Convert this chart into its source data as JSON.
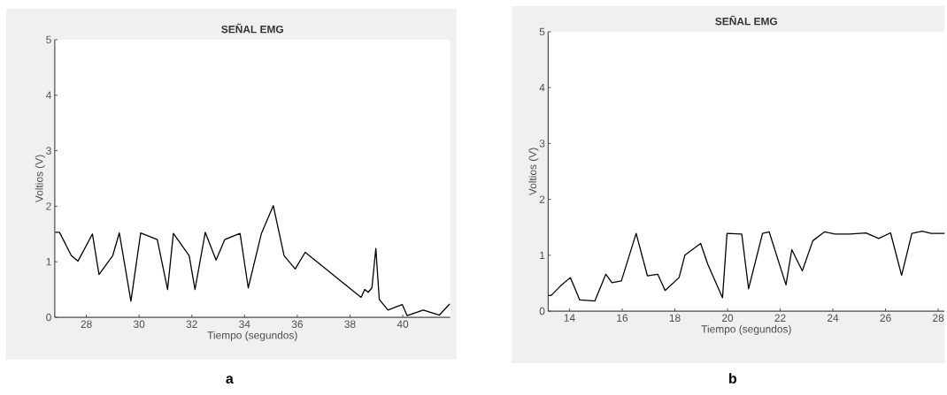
{
  "chart_data": [
    {
      "type": "line",
      "title": "SEÑAL EMG",
      "xlabel": "Tiempo (segundos)",
      "ylabel": "Voltios (V)",
      "color": "#000000",
      "x": [
        26.82,
        26.98,
        27.43,
        27.68,
        28.23,
        28.48,
        29.0,
        29.25,
        29.69,
        30.06,
        30.69,
        31.08,
        31.3,
        31.9,
        32.12,
        32.51,
        32.92,
        33.25,
        33.83,
        34.14,
        34.64,
        35.09,
        35.5,
        35.92,
        36.3,
        38.42,
        38.56,
        38.69,
        38.83,
        38.98,
        39.11,
        39.44,
        39.98,
        40.17,
        40.78,
        41.39,
        41.78
      ],
      "values": [
        1.53,
        1.53,
        1.11,
        1.01,
        1.5,
        0.77,
        1.11,
        1.52,
        0.29,
        1.52,
        1.4,
        0.5,
        1.51,
        1.11,
        0.5,
        1.53,
        1.03,
        1.4,
        1.51,
        0.53,
        1.51,
        2.01,
        1.11,
        0.87,
        1.17,
        0.36,
        0.5,
        0.45,
        0.53,
        1.24,
        0.32,
        0.13,
        0.23,
        0.03,
        0.13,
        0.04,
        0.24
      ],
      "xlim": [
        26.8,
        41.8
      ],
      "ylim": [
        0,
        5
      ],
      "xticks": [
        28,
        30,
        32,
        34,
        36,
        38,
        40
      ],
      "yticks": [
        0,
        1,
        2,
        3,
        4,
        5
      ],
      "annotations": [
        "a"
      ]
    },
    {
      "type": "line",
      "title": "SEÑAL EMG",
      "xlabel": "Tiempo (segundos)",
      "ylabel": "Voltios (V)",
      "color": "#000000",
      "x": [
        13.19,
        13.3,
        13.66,
        14.03,
        14.39,
        14.96,
        15.38,
        15.61,
        15.97,
        16.53,
        16.96,
        17.35,
        17.63,
        18.16,
        18.38,
        18.98,
        19.25,
        19.81,
        19.98,
        20.54,
        20.8,
        21.33,
        21.58,
        22.22,
        22.44,
        22.84,
        23.24,
        23.69,
        24.08,
        24.64,
        25.26,
        25.74,
        26.19,
        26.61,
        27.0,
        27.39,
        27.73,
        28.24
      ],
      "values": [
        0.28,
        0.28,
        0.45,
        0.6,
        0.2,
        0.18,
        0.66,
        0.51,
        0.54,
        1.39,
        0.63,
        0.66,
        0.37,
        0.6,
        1.0,
        1.21,
        0.84,
        0.24,
        1.39,
        1.38,
        0.4,
        1.39,
        1.42,
        0.47,
        1.1,
        0.72,
        1.26,
        1.42,
        1.38,
        1.38,
        1.4,
        1.3,
        1.4,
        0.64,
        1.39,
        1.43,
        1.39,
        1.39
      ],
      "xlim": [
        13.19,
        28.24
      ],
      "ylim": [
        0,
        5
      ],
      "xticks": [
        14,
        16,
        18,
        20,
        22,
        24,
        26,
        28
      ],
      "yticks": [
        0,
        1,
        2,
        3,
        4,
        5
      ],
      "annotations": [
        "b"
      ]
    }
  ]
}
